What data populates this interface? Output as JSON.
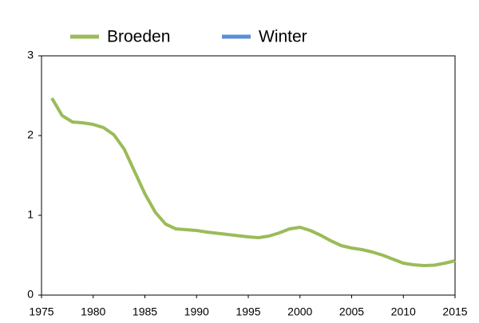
{
  "chart_data": {
    "type": "line",
    "x": [
      1976,
      1977,
      1978,
      1979,
      1980,
      1981,
      1982,
      1983,
      1984,
      1985,
      1986,
      1987,
      1988,
      1989,
      1990,
      1991,
      1992,
      1993,
      1994,
      1995,
      1996,
      1997,
      1998,
      1999,
      2000,
      2001,
      2002,
      2003,
      2004,
      2005,
      2006,
      2007,
      2008,
      2009,
      2010,
      2011,
      2012,
      2013,
      2014,
      2015
    ],
    "series": [
      {
        "name": "Broeden",
        "color": "#9bbb59",
        "values": [
          2.47,
          2.25,
          2.17,
          2.16,
          2.14,
          2.1,
          2.01,
          1.83,
          1.55,
          1.27,
          1.04,
          0.89,
          0.83,
          0.82,
          0.81,
          0.79,
          0.775,
          0.76,
          0.745,
          0.73,
          0.72,
          0.74,
          0.78,
          0.83,
          0.85,
          0.81,
          0.75,
          0.68,
          0.62,
          0.59,
          0.57,
          0.54,
          0.5,
          0.45,
          0.4,
          0.38,
          0.37,
          0.375,
          0.4,
          0.43
        ]
      },
      {
        "name": "Winter",
        "color": "#5b8fd6",
        "values": [
          null,
          null,
          null,
          null,
          null,
          null,
          null,
          null,
          null,
          null,
          null,
          null,
          null,
          null,
          null,
          null,
          null,
          null,
          null,
          null,
          null,
          null,
          null,
          null,
          null,
          null,
          null,
          null,
          null,
          null,
          null,
          null,
          null,
          null,
          null,
          null,
          null,
          null,
          null,
          null
        ]
      }
    ],
    "xlim": [
      1975,
      2015
    ],
    "xticks": [
      1975,
      1980,
      1985,
      1990,
      1995,
      2000,
      2005,
      2010,
      2015
    ],
    "ylim": [
      0,
      3
    ],
    "yticks": [
      0,
      1,
      2,
      3
    ],
    "grid": false
  }
}
